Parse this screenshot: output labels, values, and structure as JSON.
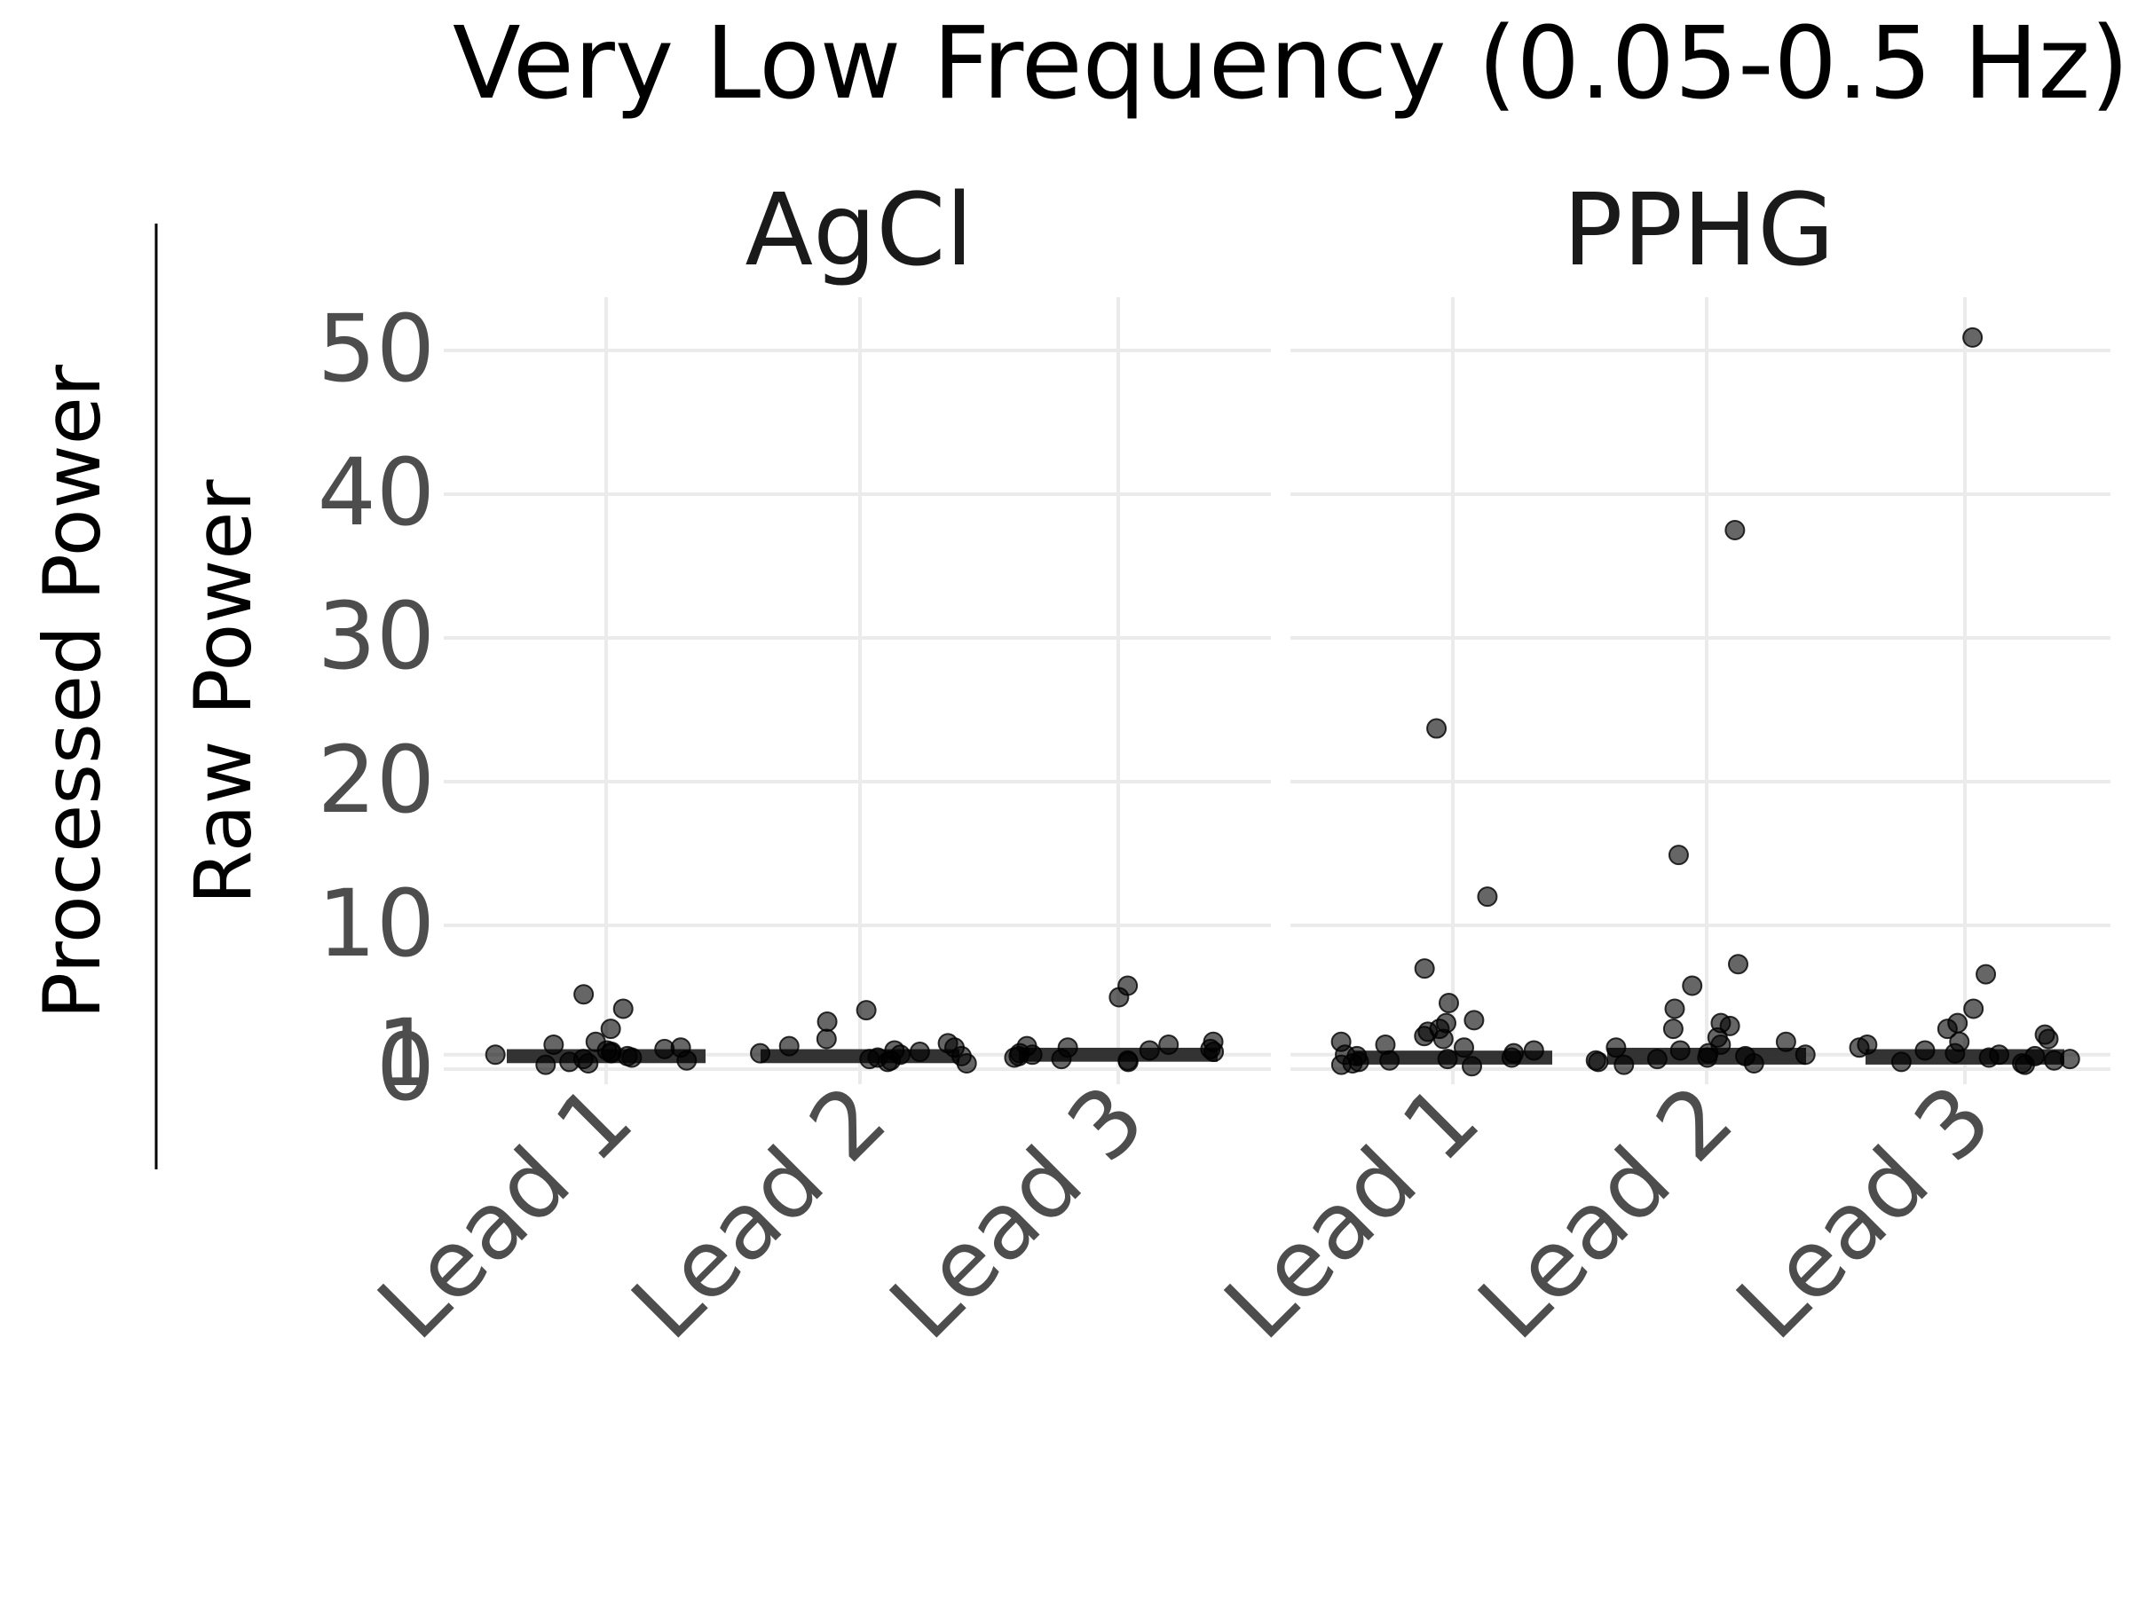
{
  "chart_data": {
    "type": "box",
    "title": "Very Low Frequency (0.05-0.5 Hz)",
    "ylabel_numerator": "Processed Power",
    "ylabel_denominator": "Raw Power",
    "ylim": [
      -1,
      53
    ],
    "y_ticks": [
      0,
      1,
      10,
      20,
      30,
      40,
      50
    ],
    "y_tick_labels": [
      "0",
      "1",
      "10",
      "20",
      "30",
      "40",
      "50"
    ],
    "grid": true,
    "legend": "none",
    "facets": [
      {
        "name": "AgCl",
        "fill_color": "#E05555",
        "categories": [
          "Lead 1",
          "Lead 2",
          "Lead 3"
        ],
        "boxes": [
          {
            "category": "Lead 1",
            "q1": 0.6,
            "median": 0.9,
            "q3": 1.2
          },
          {
            "category": "Lead 2",
            "q1": 0.6,
            "median": 0.9,
            "q3": 1.2
          },
          {
            "category": "Lead 3",
            "q1": 0.7,
            "median": 1.0,
            "q3": 1.3
          }
        ],
        "points": [
          {
            "category": "Lead 1",
            "values": [
              5.2,
              4.2,
              2.8,
              1.9,
              1.7,
              1.5,
              1.4,
              1.3,
              1.2,
              1.1,
              1.0,
              0.9,
              0.8,
              0.7,
              0.6,
              0.5,
              0.4,
              0.3
            ]
          },
          {
            "category": "Lead 2",
            "values": [
              4.1,
              3.3,
              2.1,
              1.8,
              1.6,
              1.5,
              1.3,
              1.2,
              1.1,
              1.0,
              0.9,
              0.8,
              0.7,
              0.6,
              0.5,
              0.4
            ]
          },
          {
            "category": "Lead 3",
            "values": [
              5.8,
              5.0,
              1.9,
              1.7,
              1.6,
              1.5,
              1.4,
              1.3,
              1.2,
              1.1,
              1.0,
              0.9,
              0.8,
              0.7,
              0.6,
              0.5
            ]
          }
        ]
      },
      {
        "name": "PPHG",
        "fill_color": "#4A86C8",
        "categories": [
          "Lead 1",
          "Lead 2",
          "Lead 3"
        ],
        "boxes": [
          {
            "category": "Lead 1",
            "q1": 0.5,
            "median": 0.8,
            "q3": 1.1
          },
          {
            "category": "Lead 2",
            "q1": 0.5,
            "median": 0.9,
            "q3": 1.3
          },
          {
            "category": "Lead 3",
            "q1": 0.5,
            "median": 0.8,
            "q3": 1.2
          }
        ],
        "points": [
          {
            "category": "Lead 1",
            "values": [
              23.7,
              12.0,
              7.0,
              4.6,
              3.4,
              3.2,
              2.8,
              2.6,
              2.3,
              2.1,
              1.9,
              1.7,
              1.5,
              1.3,
              1.1,
              1.0,
              0.9,
              0.8,
              0.7,
              0.6,
              0.5,
              0.4,
              0.3,
              0.2
            ]
          },
          {
            "category": "Lead 2",
            "values": [
              37.5,
              14.9,
              7.3,
              5.8,
              4.2,
              3.2,
              3.0,
              2.8,
              2.2,
              1.9,
              1.7,
              1.5,
              1.3,
              1.1,
              1.0,
              0.9,
              0.8,
              0.7,
              0.6,
              0.5,
              0.4,
              0.3
            ]
          },
          {
            "category": "Lead 3",
            "values": [
              50.9,
              6.6,
              4.2,
              3.2,
              2.8,
              2.4,
              2.1,
              1.9,
              1.7,
              1.5,
              1.3,
              1.1,
              1.0,
              0.9,
              0.8,
              0.7,
              0.6,
              0.5,
              0.4,
              0.3
            ]
          }
        ]
      }
    ]
  }
}
